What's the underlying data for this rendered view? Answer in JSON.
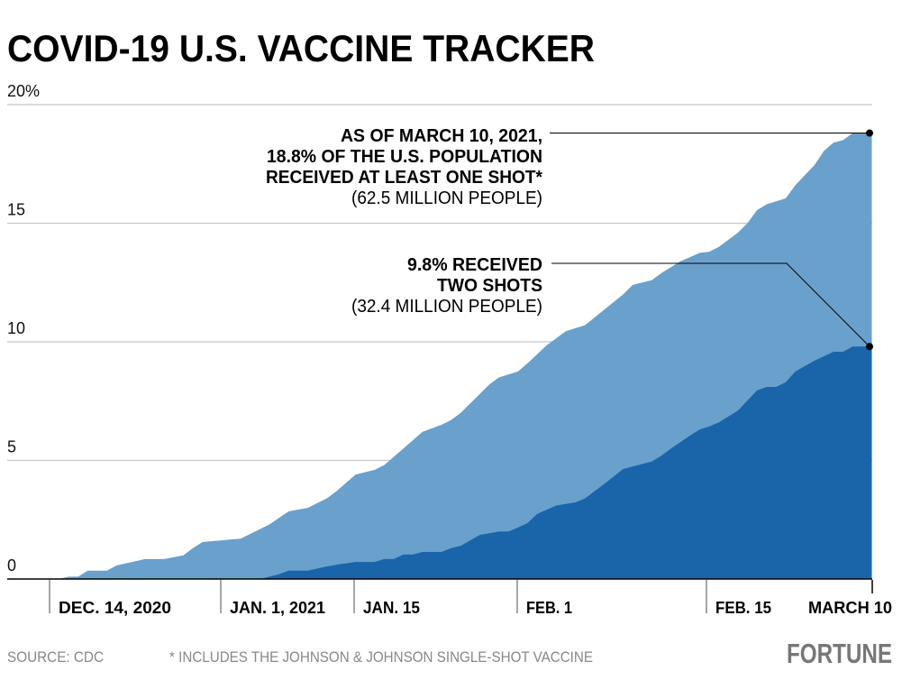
{
  "title": "COVID-19 U.S. VACCINE TRACKER",
  "footer": {
    "source": "SOURCE: CDC",
    "note": "* INCLUDES THE JOHNSON & JOHNSON SINGLE-SHOT VACCINE",
    "logo": "FORTUNE"
  },
  "chart_data": {
    "type": "area",
    "title": "COVID-19 U.S. VACCINE TRACKER",
    "xlabel": "",
    "ylabel": "",
    "ylim": [
      0,
      20
    ],
    "xlim": [
      "2020-12-14",
      "2021-03-10"
    ],
    "grid": true,
    "y_ticks": [
      {
        "value": 20,
        "label": "20%"
      },
      {
        "value": 15,
        "label": "15"
      },
      {
        "value": 10,
        "label": "10"
      },
      {
        "value": 5,
        "label": "5"
      },
      {
        "value": 0,
        "label": "0"
      }
    ],
    "x_ticks": [
      "DEC. 14, 2020",
      "JAN. 1, 2021",
      "JAN. 15",
      "FEB. 1",
      "FEB. 15",
      "MARCH 10"
    ],
    "series": [
      {
        "key": "one_shot",
        "color": "#6aa0cc",
        "points": [
          [
            "2020-12-15",
            0
          ],
          [
            "2020-12-16",
            0.1
          ],
          [
            "2020-12-17",
            0.1
          ],
          [
            "2020-12-18",
            0.35
          ],
          [
            "2020-12-20",
            0.35
          ],
          [
            "2020-12-21",
            0.57
          ],
          [
            "2020-12-24",
            0.84
          ],
          [
            "2020-12-26",
            0.84
          ],
          [
            "2020-12-28",
            1.0
          ],
          [
            "2020-12-29",
            1.3
          ],
          [
            "2020-12-30",
            1.56
          ],
          [
            "2021-01-01",
            1.63
          ],
          [
            "2021-01-03",
            1.7
          ],
          [
            "2021-01-06",
            2.3
          ],
          [
            "2021-01-08",
            2.85
          ],
          [
            "2021-01-10",
            3.0
          ],
          [
            "2021-01-12",
            3.4
          ],
          [
            "2021-01-13",
            3.7
          ],
          [
            "2021-01-15",
            4.4
          ],
          [
            "2021-01-17",
            4.6
          ],
          [
            "2021-01-18",
            4.8
          ],
          [
            "2021-01-20",
            5.5
          ],
          [
            "2021-01-22",
            6.2
          ],
          [
            "2021-01-24",
            6.5
          ],
          [
            "2021-01-25",
            6.7
          ],
          [
            "2021-01-26",
            7.0
          ],
          [
            "2021-01-29",
            8.2
          ],
          [
            "2021-01-30",
            8.5
          ],
          [
            "2021-02-01",
            8.75
          ],
          [
            "2021-02-02",
            9.1
          ],
          [
            "2021-02-04",
            9.85
          ],
          [
            "2021-02-06",
            10.45
          ],
          [
            "2021-02-08",
            10.7
          ],
          [
            "2021-02-10",
            11.35
          ],
          [
            "2021-02-12",
            12.0
          ],
          [
            "2021-02-13",
            12.4
          ],
          [
            "2021-02-15",
            12.6
          ],
          [
            "2021-02-16",
            12.9
          ],
          [
            "2021-02-18",
            13.4
          ],
          [
            "2021-02-20",
            13.75
          ],
          [
            "2021-02-21",
            13.8
          ],
          [
            "2021-02-22",
            14.0
          ],
          [
            "2021-02-24",
            14.6
          ],
          [
            "2021-02-25",
            15.0
          ],
          [
            "2021-02-26",
            15.55
          ],
          [
            "2021-02-27",
            15.8
          ],
          [
            "2021-03-01",
            16.05
          ],
          [
            "2021-03-02",
            16.6
          ],
          [
            "2021-03-04",
            17.45
          ],
          [
            "2021-03-05",
            18.05
          ],
          [
            "2021-03-06",
            18.4
          ],
          [
            "2021-03-07",
            18.5
          ],
          [
            "2021-03-08",
            18.8
          ],
          [
            "2021-03-10",
            18.8
          ]
        ]
      },
      {
        "key": "two_shots",
        "color": "#1a64aa",
        "points": [
          [
            "2021-01-05",
            0
          ],
          [
            "2021-01-07",
            0.2
          ],
          [
            "2021-01-08",
            0.35
          ],
          [
            "2021-01-10",
            0.35
          ],
          [
            "2021-01-12",
            0.53
          ],
          [
            "2021-01-13",
            0.6
          ],
          [
            "2021-01-15",
            0.72
          ],
          [
            "2021-01-17",
            0.72
          ],
          [
            "2021-01-18",
            0.84
          ],
          [
            "2021-01-19",
            0.84
          ],
          [
            "2021-01-20",
            1.03
          ],
          [
            "2021-01-21",
            1.03
          ],
          [
            "2021-01-22",
            1.14
          ],
          [
            "2021-01-24",
            1.14
          ],
          [
            "2021-01-25",
            1.3
          ],
          [
            "2021-01-26",
            1.4
          ],
          [
            "2021-01-28",
            1.86
          ],
          [
            "2021-01-30",
            2.0
          ],
          [
            "2021-01-31",
            2.0
          ],
          [
            "2021-02-01",
            2.17
          ],
          [
            "2021-02-02",
            2.36
          ],
          [
            "2021-02-03",
            2.74
          ],
          [
            "2021-02-05",
            3.1
          ],
          [
            "2021-02-07",
            3.23
          ],
          [
            "2021-02-08",
            3.4
          ],
          [
            "2021-02-10",
            4.0
          ],
          [
            "2021-02-12",
            4.64
          ],
          [
            "2021-02-15",
            4.95
          ],
          [
            "2021-02-16",
            5.2
          ],
          [
            "2021-02-17",
            5.5
          ],
          [
            "2021-02-19",
            6.05
          ],
          [
            "2021-02-20",
            6.3
          ],
          [
            "2021-02-21",
            6.43
          ],
          [
            "2021-02-22",
            6.6
          ],
          [
            "2021-02-24",
            7.1
          ],
          [
            "2021-02-26",
            7.95
          ],
          [
            "2021-02-27",
            8.1
          ],
          [
            "2021-02-28",
            8.1
          ],
          [
            "2021-03-01",
            8.3
          ],
          [
            "2021-03-02",
            8.75
          ],
          [
            "2021-03-04",
            9.2
          ],
          [
            "2021-03-06",
            9.58
          ],
          [
            "2021-03-07",
            9.58
          ],
          [
            "2021-03-08",
            9.8
          ],
          [
            "2021-03-10",
            9.8
          ]
        ]
      }
    ],
    "annotations": [
      {
        "key": "one_shot",
        "value": 18.8,
        "lines_bold": [
          "AS OF MARCH 10, 2021,",
          "18.8% OF THE U.S. POPULATION",
          "RECEIVED AT LEAST ONE SHOT*"
        ],
        "line_regular": "(62.5 MILLION PEOPLE)"
      },
      {
        "key": "two_shots",
        "value": 9.8,
        "lines_bold": [
          "9.8% RECEIVED",
          "TWO SHOTS"
        ],
        "line_regular": "(32.4 MILLION PEOPLE)"
      }
    ]
  }
}
